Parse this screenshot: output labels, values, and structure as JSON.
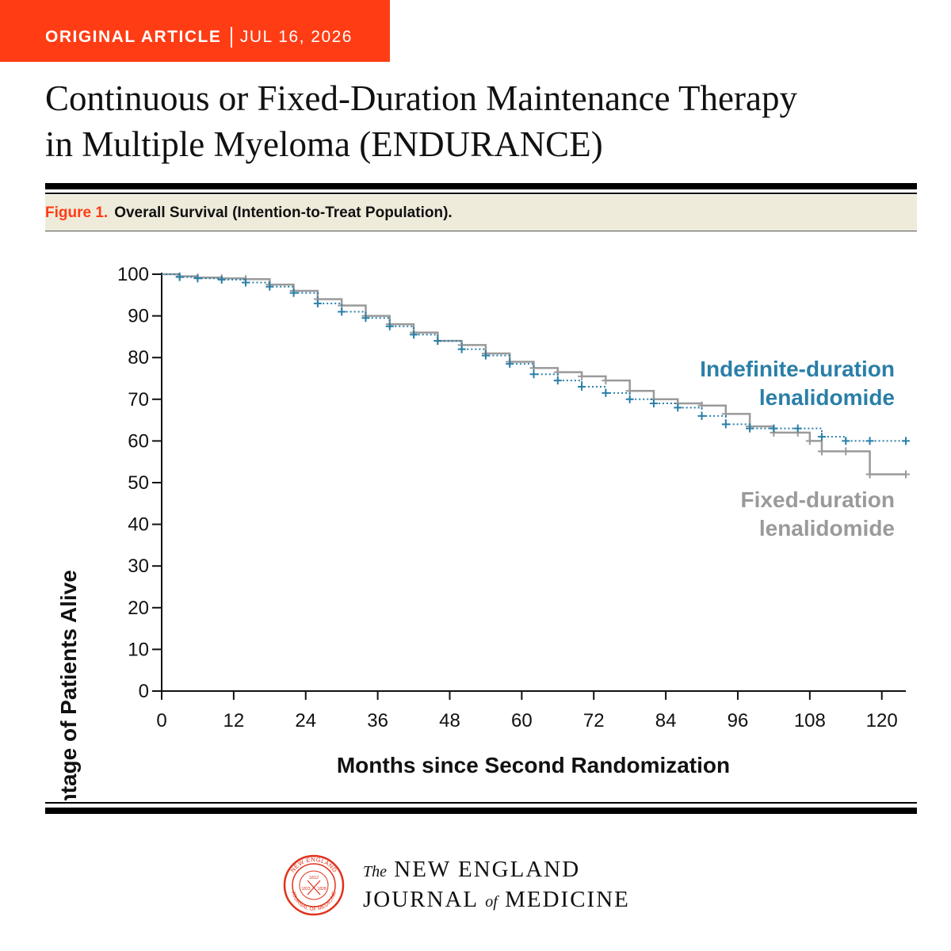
{
  "header": {
    "section": "ORIGINAL ARTICLE",
    "date": "JUL 16, 2026",
    "title_line1": "Continuous or Fixed-Duration Maintenance Therapy",
    "title_line2": "in Multiple Myeloma (ENDURANCE)"
  },
  "figure": {
    "label": "Figure 1.",
    "caption": "Overall Survival (Intention-to-Treat Population)."
  },
  "colors": {
    "banner": "#ff3c14",
    "caption_bg": "#efebdb",
    "indefinite": "#2a7fa8",
    "fixed": "#9a9a9a"
  },
  "footer": {
    "journal_the": "The",
    "journal_line1": "NEW ENGLAND",
    "journal_line2a": "JOURNAL",
    "journal_of": "of",
    "journal_line2b": "MEDICINE",
    "seal_top_text": "NEW ENGLAND",
    "seal_bottom_text": "JOURNAL OF MEDICINE",
    "seal_year1": "1812",
    "seal_year2": "1823",
    "seal_year3": "1828"
  },
  "chart_data": {
    "type": "line",
    "subtype": "kaplan-meier step",
    "xlabel": "Months since Second Randomization",
    "ylabel": "Percentage of Patients Alive",
    "xlim": [
      0,
      124
    ],
    "ylim": [
      0,
      100
    ],
    "xticks": [
      "0",
      "12",
      "24",
      "36",
      "48",
      "60",
      "72",
      "84",
      "96",
      "108",
      "120"
    ],
    "yticks": [
      "0",
      "10",
      "20",
      "30",
      "40",
      "50",
      "60",
      "70",
      "80",
      "90",
      "100"
    ],
    "grid": false,
    "legend_placement": "right, inline labels",
    "series": [
      {
        "name": "Indefinite-duration lenalidomide",
        "style": "dotted",
        "x": [
          0,
          3,
          6,
          10,
          14,
          18,
          22,
          26,
          30,
          34,
          38,
          42,
          46,
          50,
          54,
          58,
          62,
          66,
          70,
          74,
          78,
          82,
          86,
          90,
          94,
          98,
          102,
          106,
          110,
          114,
          118,
          124
        ],
        "y": [
          100,
          99.3,
          99,
          98.7,
          98,
          97,
          95.5,
          93,
          91,
          89.5,
          87.5,
          85.5,
          84,
          82,
          80.5,
          78.5,
          76,
          74.5,
          73,
          71.5,
          70,
          69,
          68,
          66,
          64,
          63,
          63,
          63,
          61,
          60,
          60,
          60
        ]
      },
      {
        "name": "Fixed-duration lenalidomide",
        "style": "solid",
        "x": [
          0,
          3,
          6,
          10,
          14,
          18,
          22,
          26,
          30,
          34,
          38,
          42,
          46,
          50,
          54,
          58,
          62,
          66,
          70,
          74,
          78,
          82,
          86,
          90,
          94,
          98,
          102,
          106,
          108,
          110,
          114,
          118,
          124
        ],
        "y": [
          100,
          99.5,
          99.2,
          99,
          98.8,
          97.5,
          96,
          94,
          92.5,
          90,
          88,
          86,
          84,
          83,
          81,
          79,
          77.5,
          76.5,
          75.5,
          74.5,
          72,
          70,
          69,
          68.5,
          66.5,
          63.5,
          62,
          62,
          60,
          57.5,
          57.5,
          52,
          52
        ]
      }
    ]
  }
}
